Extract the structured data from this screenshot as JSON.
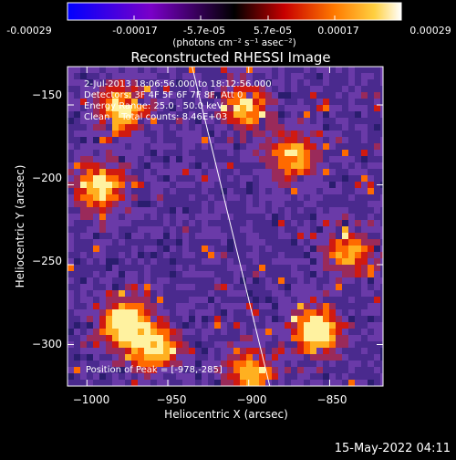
{
  "colorbar": {
    "tick_labels": [
      "-0.00029",
      "-0.00017",
      "-5.7e-05",
      "5.7e-05",
      "0.00017",
      "0.00029"
    ],
    "unit_label": "(photons cm⁻² s⁻¹ asec⁻²)",
    "range": [
      -0.00029,
      0.00029
    ]
  },
  "chart_data": {
    "type": "heatmap",
    "title": "Reconstructed RHESSI Image",
    "xlabel": "Heliocentric X (arcsec)",
    "ylabel": "Heliocentric Y (arcsec)",
    "xlim": [
      -1012,
      -817
    ],
    "ylim": [
      -326,
      -126
    ],
    "x_ticks": [
      -1000,
      -950,
      -900,
      -850
    ],
    "y_ticks": [
      -150,
      -200,
      -250,
      -300
    ],
    "x_tick_labels": [
      "−1000",
      "−950",
      "−900",
      "−850"
    ],
    "y_tick_labels": [
      "−150",
      "−200",
      "−250",
      "−300"
    ],
    "annotations": [
      "2-Jul-2013 18:06:56.000 to 18:12:56.000",
      "Detectors: 3F 4F 5F 6F 7F 8F, Att 0",
      "Energy Range: 25.0 - 50.0 keV",
      "Clean    Total counts: 8.46E+03"
    ],
    "peak_label": "Position of Peak = [-978,-285]",
    "peak_position": [
      -978,
      -285
    ],
    "limb_line": {
      "points": [
        [
          -935,
          -126
        ],
        [
          -887,
          -326
        ]
      ]
    },
    "bright_sources": [
      {
        "x": -978,
        "y": -285,
        "level": 1.0
      },
      {
        "x": -860,
        "y": -290,
        "level": 1.0
      },
      {
        "x": -980,
        "y": -150,
        "level": 0.8
      },
      {
        "x": -994,
        "y": -200,
        "level": 0.8
      },
      {
        "x": -960,
        "y": -300,
        "level": 0.8
      },
      {
        "x": -875,
        "y": -180,
        "level": 0.7
      },
      {
        "x": -905,
        "y": -150,
        "level": 0.7
      },
      {
        "x": -900,
        "y": -315,
        "level": 0.7
      },
      {
        "x": -840,
        "y": -240,
        "level": 0.6
      }
    ]
  },
  "footer": {
    "timestamp": "15-May-2022 04:11"
  }
}
